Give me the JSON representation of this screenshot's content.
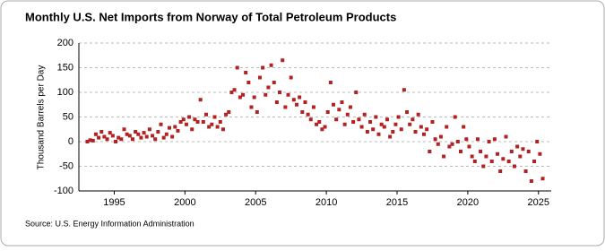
{
  "chart_data": {
    "type": "scatter",
    "title": "Monthly U.S. Net Imports from Norway of Total Petroleum Products",
    "y_label": "Thousand Barrels per Day",
    "source": "Source: U.S. Energy Information Administration",
    "color": "#b22222",
    "grid": true,
    "xlim": [
      1992.5,
      2025.9
    ],
    "xticks": [
      1995,
      2000,
      2005,
      2010,
      2015,
      2020,
      2025
    ],
    "ylim": [
      -100,
      200
    ],
    "yticks": [
      -100,
      -50,
      0,
      50,
      100,
      150,
      200
    ],
    "x": [
      1993.1,
      1993.3,
      1993.5,
      1993.7,
      1993.9,
      1994.1,
      1994.3,
      1994.5,
      1994.7,
      1994.9,
      1995.1,
      1995.3,
      1995.5,
      1995.7,
      1995.9,
      1996.1,
      1996.3,
      1996.5,
      1996.7,
      1996.9,
      1997.1,
      1997.3,
      1997.5,
      1997.7,
      1997.9,
      1998.1,
      1998.3,
      1998.5,
      1998.7,
      1998.9,
      1999.1,
      1999.3,
      1999.5,
      1999.7,
      1999.9,
      2000.1,
      2000.3,
      2000.5,
      2000.7,
      2000.9,
      2001.1,
      2001.3,
      2001.5,
      2001.7,
      2001.9,
      2002.1,
      2002.3,
      2002.5,
      2002.7,
      2002.9,
      2003.1,
      2003.3,
      2003.5,
      2003.7,
      2003.9,
      2004.1,
      2004.3,
      2004.5,
      2004.7,
      2004.9,
      2005.1,
      2005.3,
      2005.5,
      2005.7,
      2005.9,
      2006.1,
      2006.3,
      2006.5,
      2006.7,
      2006.9,
      2007.1,
      2007.3,
      2007.5,
      2007.7,
      2007.9,
      2008.1,
      2008.3,
      2008.5,
      2008.7,
      2008.9,
      2009.1,
      2009.3,
      2009.5,
      2009.7,
      2009.9,
      2010.1,
      2010.3,
      2010.5,
      2010.7,
      2010.9,
      2011.1,
      2011.3,
      2011.5,
      2011.7,
      2011.9,
      2012.1,
      2012.3,
      2012.5,
      2012.7,
      2012.9,
      2013.1,
      2013.3,
      2013.5,
      2013.7,
      2013.9,
      2014.1,
      2014.3,
      2014.5,
      2014.7,
      2014.9,
      2015.1,
      2015.3,
      2015.5,
      2015.7,
      2015.9,
      2016.1,
      2016.3,
      2016.5,
      2016.7,
      2016.9,
      2017.1,
      2017.3,
      2017.5,
      2017.7,
      2017.9,
      2018.1,
      2018.3,
      2018.5,
      2018.7,
      2018.9,
      2019.1,
      2019.3,
      2019.5,
      2019.7,
      2019.9,
      2020.1,
      2020.3,
      2020.5,
      2020.7,
      2020.9,
      2021.1,
      2021.3,
      2021.5,
      2021.7,
      2021.9,
      2022.1,
      2022.3,
      2022.5,
      2022.7,
      2022.9,
      2023.1,
      2023.3,
      2023.5,
      2023.7,
      2023.9,
      2024.1,
      2024.3,
      2024.5,
      2024.7,
      2024.9,
      2025.1,
      2025.3
    ],
    "values": [
      0,
      3,
      2,
      15,
      8,
      20,
      10,
      5,
      18,
      12,
      0,
      8,
      5,
      25,
      15,
      12,
      5,
      20,
      15,
      8,
      18,
      10,
      25,
      12,
      5,
      20,
      35,
      8,
      15,
      28,
      10,
      30,
      22,
      40,
      45,
      35,
      50,
      25,
      45,
      40,
      85,
      40,
      55,
      30,
      35,
      50,
      30,
      40,
      25,
      55,
      60,
      100,
      105,
      150,
      90,
      95,
      140,
      120,
      70,
      90,
      60,
      130,
      150,
      95,
      110,
      155,
      120,
      80,
      100,
      165,
      70,
      95,
      130,
      85,
      75,
      90,
      60,
      80,
      55,
      45,
      70,
      35,
      40,
      25,
      30,
      60,
      120,
      75,
      45,
      65,
      80,
      35,
      55,
      70,
      40,
      100,
      45,
      30,
      55,
      20,
      40,
      25,
      50,
      15,
      35,
      30,
      45,
      10,
      20,
      35,
      50,
      25,
      105,
      60,
      35,
      45,
      20,
      55,
      30,
      15,
      25,
      -20,
      40,
      5,
      -5,
      10,
      -30,
      30,
      -10,
      -5,
      50,
      0,
      -20,
      30,
      5,
      -10,
      -30,
      -40,
      5,
      -20,
      -50,
      -30,
      0,
      -40,
      5,
      -25,
      -60,
      -35,
      10,
      -40,
      -20,
      -50,
      -10,
      -30,
      -15,
      -60,
      -20,
      -80,
      -40,
      0,
      -25,
      -75
    ]
  }
}
